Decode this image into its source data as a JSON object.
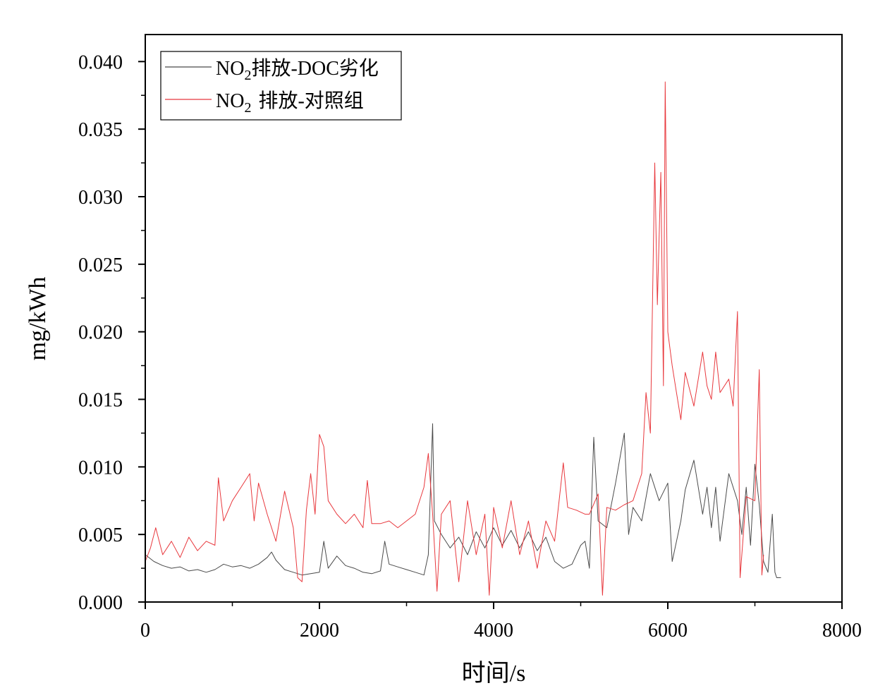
{
  "chart_data": {
    "type": "line",
    "title": "",
    "xlabel": "时间/s",
    "ylabel": "mg/kWh",
    "xlim": [
      0,
      8000
    ],
    "ylim": [
      0,
      0.042
    ],
    "x_ticks": [
      0,
      2000,
      4000,
      6000,
      8000
    ],
    "x_tick_labels": [
      "0",
      "2000",
      "4000",
      "6000",
      "8000"
    ],
    "y_ticks": [
      0,
      0.005,
      0.01,
      0.015,
      0.02,
      0.025,
      0.03,
      0.035,
      0.04
    ],
    "y_tick_labels": [
      "0.000",
      "0.005",
      "0.010",
      "0.015",
      "0.020",
      "0.025",
      "0.030",
      "0.035",
      "0.040"
    ],
    "grid": false,
    "legend_position": "top-left",
    "series": [
      {
        "name": "排放-DOC劣化",
        "legend_prefix": "NO",
        "legend_sub": "2",
        "color": "#4a4a4a",
        "points": [
          [
            0,
            0.0035
          ],
          [
            100,
            0.003
          ],
          [
            200,
            0.0027
          ],
          [
            300,
            0.0025
          ],
          [
            400,
            0.0026
          ],
          [
            500,
            0.0023
          ],
          [
            600,
            0.0024
          ],
          [
            700,
            0.0022
          ],
          [
            800,
            0.0024
          ],
          [
            900,
            0.0028
          ],
          [
            1000,
            0.0026
          ],
          [
            1100,
            0.0027
          ],
          [
            1200,
            0.0025
          ],
          [
            1300,
            0.0028
          ],
          [
            1400,
            0.0033
          ],
          [
            1450,
            0.0037
          ],
          [
            1500,
            0.0031
          ],
          [
            1600,
            0.0024
          ],
          [
            1700,
            0.0022
          ],
          [
            1800,
            0.002
          ],
          [
            1900,
            0.0021
          ],
          [
            2000,
            0.0022
          ],
          [
            2050,
            0.0045
          ],
          [
            2100,
            0.0025
          ],
          [
            2200,
            0.0034
          ],
          [
            2300,
            0.0027
          ],
          [
            2400,
            0.0025
          ],
          [
            2500,
            0.0022
          ],
          [
            2600,
            0.0021
          ],
          [
            2700,
            0.0023
          ],
          [
            2750,
            0.0045
          ],
          [
            2800,
            0.0028
          ],
          [
            2900,
            0.0026
          ],
          [
            3000,
            0.0024
          ],
          [
            3100,
            0.0022
          ],
          [
            3200,
            0.002
          ],
          [
            3250,
            0.0035
          ],
          [
            3300,
            0.0132
          ],
          [
            3320,
            0.006
          ],
          [
            3400,
            0.005
          ],
          [
            3500,
            0.004
          ],
          [
            3600,
            0.0048
          ],
          [
            3700,
            0.0035
          ],
          [
            3800,
            0.0052
          ],
          [
            3900,
            0.004
          ],
          [
            4000,
            0.0055
          ],
          [
            4100,
            0.0042
          ],
          [
            4200,
            0.0053
          ],
          [
            4300,
            0.004
          ],
          [
            4400,
            0.0052
          ],
          [
            4500,
            0.0038
          ],
          [
            4600,
            0.0048
          ],
          [
            4700,
            0.003
          ],
          [
            4800,
            0.0025
          ],
          [
            4900,
            0.0028
          ],
          [
            5000,
            0.0042
          ],
          [
            5050,
            0.0045
          ],
          [
            5100,
            0.0025
          ],
          [
            5150,
            0.0122
          ],
          [
            5200,
            0.006
          ],
          [
            5300,
            0.0055
          ],
          [
            5400,
            0.0088
          ],
          [
            5500,
            0.0125
          ],
          [
            5550,
            0.005
          ],
          [
            5600,
            0.007
          ],
          [
            5700,
            0.006
          ],
          [
            5800,
            0.0095
          ],
          [
            5900,
            0.0075
          ],
          [
            6000,
            0.0088
          ],
          [
            6050,
            0.003
          ],
          [
            6150,
            0.006
          ],
          [
            6200,
            0.0083
          ],
          [
            6300,
            0.0105
          ],
          [
            6400,
            0.0065
          ],
          [
            6450,
            0.0085
          ],
          [
            6500,
            0.0055
          ],
          [
            6550,
            0.0085
          ],
          [
            6600,
            0.0045
          ],
          [
            6700,
            0.0095
          ],
          [
            6800,
            0.0075
          ],
          [
            6850,
            0.005
          ],
          [
            6900,
            0.0085
          ],
          [
            6950,
            0.0042
          ],
          [
            7000,
            0.0102
          ],
          [
            7050,
            0.0072
          ],
          [
            7100,
            0.003
          ],
          [
            7150,
            0.0022
          ],
          [
            7200,
            0.0065
          ],
          [
            7230,
            0.0022
          ],
          [
            7250,
            0.0018
          ],
          [
            7300,
            0.0018
          ]
        ]
      },
      {
        "name": "排放-对照组",
        "legend_prefix": "NO",
        "legend_sub": "2",
        "color": "#e8383d",
        "points": [
          [
            0,
            0.003
          ],
          [
            60,
            0.004
          ],
          [
            120,
            0.0055
          ],
          [
            200,
            0.0035
          ],
          [
            300,
            0.0045
          ],
          [
            400,
            0.0033
          ],
          [
            500,
            0.0048
          ],
          [
            600,
            0.0038
          ],
          [
            700,
            0.0045
          ],
          [
            800,
            0.0042
          ],
          [
            840,
            0.0092
          ],
          [
            900,
            0.006
          ],
          [
            1000,
            0.0075
          ],
          [
            1100,
            0.0085
          ],
          [
            1200,
            0.0095
          ],
          [
            1250,
            0.006
          ],
          [
            1300,
            0.0088
          ],
          [
            1400,
            0.0065
          ],
          [
            1500,
            0.0045
          ],
          [
            1600,
            0.0082
          ],
          [
            1700,
            0.0055
          ],
          [
            1750,
            0.0018
          ],
          [
            1800,
            0.0015
          ],
          [
            1850,
            0.0068
          ],
          [
            1900,
            0.0095
          ],
          [
            1950,
            0.0065
          ],
          [
            2000,
            0.0124
          ],
          [
            2050,
            0.0115
          ],
          [
            2100,
            0.0075
          ],
          [
            2200,
            0.0065
          ],
          [
            2300,
            0.0058
          ],
          [
            2400,
            0.0065
          ],
          [
            2500,
            0.0055
          ],
          [
            2550,
            0.009
          ],
          [
            2600,
            0.0058
          ],
          [
            2700,
            0.0058
          ],
          [
            2800,
            0.006
          ],
          [
            2900,
            0.0055
          ],
          [
            3000,
            0.006
          ],
          [
            3100,
            0.0065
          ],
          [
            3200,
            0.0085
          ],
          [
            3250,
            0.011
          ],
          [
            3300,
            0.0065
          ],
          [
            3350,
            0.0008
          ],
          [
            3400,
            0.0065
          ],
          [
            3500,
            0.0075
          ],
          [
            3600,
            0.0015
          ],
          [
            3700,
            0.0075
          ],
          [
            3800,
            0.0035
          ],
          [
            3900,
            0.0065
          ],
          [
            3950,
            0.0005
          ],
          [
            4000,
            0.007
          ],
          [
            4100,
            0.004
          ],
          [
            4200,
            0.0075
          ],
          [
            4300,
            0.0035
          ],
          [
            4400,
            0.006
          ],
          [
            4500,
            0.0025
          ],
          [
            4600,
            0.006
          ],
          [
            4700,
            0.0045
          ],
          [
            4800,
            0.0103
          ],
          [
            4850,
            0.007
          ],
          [
            4950,
            0.0068
          ],
          [
            5050,
            0.0065
          ],
          [
            5100,
            0.0065
          ],
          [
            5200,
            0.008
          ],
          [
            5250,
            0.0005
          ],
          [
            5300,
            0.007
          ],
          [
            5400,
            0.0068
          ],
          [
            5500,
            0.0072
          ],
          [
            5600,
            0.0075
          ],
          [
            5700,
            0.0095
          ],
          [
            5750,
            0.0155
          ],
          [
            5800,
            0.0125
          ],
          [
            5850,
            0.0325
          ],
          [
            5880,
            0.022
          ],
          [
            5920,
            0.0318
          ],
          [
            5950,
            0.016
          ],
          [
            5970,
            0.0385
          ],
          [
            6000,
            0.02
          ],
          [
            6050,
            0.0175
          ],
          [
            6100,
            0.0155
          ],
          [
            6150,
            0.0135
          ],
          [
            6200,
            0.017
          ],
          [
            6300,
            0.0145
          ],
          [
            6400,
            0.0185
          ],
          [
            6450,
            0.016
          ],
          [
            6500,
            0.015
          ],
          [
            6550,
            0.0185
          ],
          [
            6600,
            0.0155
          ],
          [
            6700,
            0.0165
          ],
          [
            6750,
            0.0145
          ],
          [
            6800,
            0.0215
          ],
          [
            6830,
            0.0018
          ],
          [
            6900,
            0.0078
          ],
          [
            7000,
            0.0075
          ],
          [
            7050,
            0.0172
          ],
          [
            7080,
            0.002
          ],
          [
            7100,
            0.0035
          ]
        ]
      }
    ]
  }
}
